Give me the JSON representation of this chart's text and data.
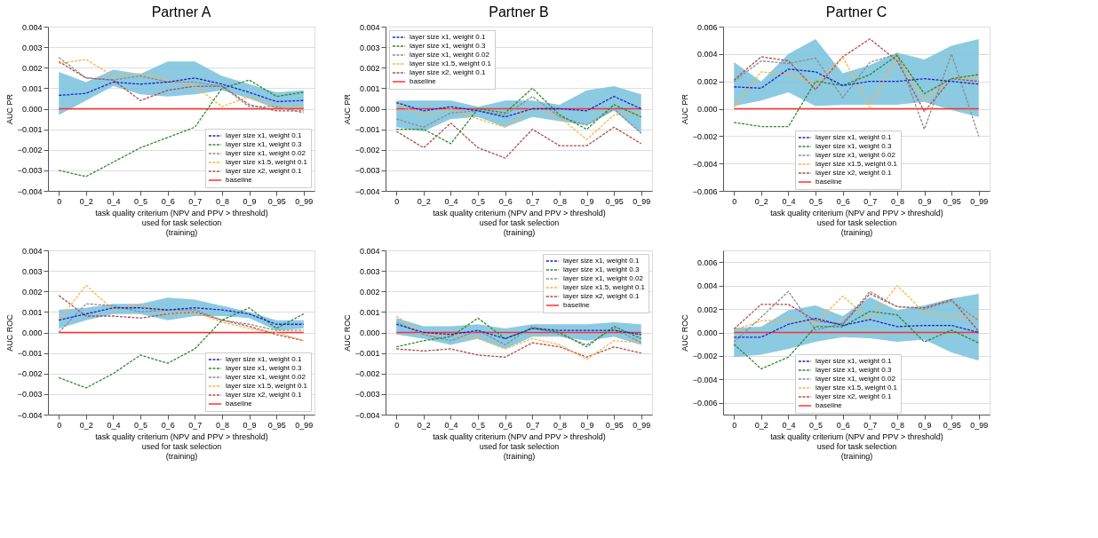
{
  "chart_data": [
    {
      "type": "line",
      "title": "Partner A",
      "xlabel": "task quality criterium (NPV and PPV > threshold)\nused for task selection\n(training)",
      "ylabel": "AUC PR",
      "categories": [
        "0",
        "0_2",
        "0_4",
        "0_5",
        "0_6",
        "0_7",
        "0_8",
        "0_9",
        "0_95",
        "0_99"
      ],
      "ylim": [
        -0.004,
        0.004
      ],
      "yticks": [
        {
          "value": -0.004,
          "label": "−0.004"
        },
        {
          "value": -0.003,
          "label": "−0.003"
        },
        {
          "value": -0.002,
          "label": "−0.002"
        },
        {
          "value": -0.001,
          "label": "−0.001"
        },
        {
          "value": 0,
          "label": "0.000"
        },
        {
          "value": 0.001,
          "label": "0.001"
        },
        {
          "value": 0.002,
          "label": "0.002"
        },
        {
          "value": 0.003,
          "label": "0.003"
        },
        {
          "value": 0.004,
          "label": "0.004"
        }
      ],
      "grid": "y",
      "legend": "bottom right",
      "line_style": "dashed",
      "series": [
        {
          "name": "layer size x1, weight 0.1",
          "color": "#1f1fd0",
          "values": [
            0.00065,
            0.00075,
            0.0013,
            0.0012,
            0.0013,
            0.0015,
            0.0012,
            0.0008,
            0.00035,
            0.0004
          ],
          "lower": [
            -0.0003,
            0.0004,
            0.0011,
            0.0007,
            0.0006,
            0.0007,
            0.0009,
            0.0005,
            0.0,
            0.0
          ],
          "upper": [
            0.0018,
            0.0013,
            0.0019,
            0.0017,
            0.0023,
            0.0023,
            0.0016,
            0.0012,
            0.0008,
            0.0009
          ]
        },
        {
          "name": "layer size x1, weight 0.3",
          "color": "#2a8a2a",
          "values": [
            -0.003,
            -0.0033,
            -0.0026,
            -0.0019,
            -0.0014,
            -0.0009,
            0.001,
            0.0014,
            0.0006,
            0.0008
          ]
        },
        {
          "name": "layer size x1, weight 0.02",
          "color": "#8c8c8c",
          "values": [
            0.0025,
            0.0015,
            0.0014,
            0.0016,
            0.0013,
            0.0013,
            0.0011,
            0.0001,
            0.0001,
            -0.0002
          ]
        },
        {
          "name": "layer size x1.5, weight 0.1",
          "color": "#ffb347",
          "values": [
            0.0022,
            0.0024,
            0.0016,
            0.0017,
            0.0014,
            0.0011,
            0.0001,
            0.0006,
            0.0001,
            0.0001
          ]
        },
        {
          "name": "layer size x2, weight 0.1",
          "color": "#b04a4a",
          "values": [
            0.0023,
            0.0015,
            0.0014,
            0.0004,
            0.0009,
            0.0011,
            0.0011,
            0.0002,
            -0.0001,
            -0.0001
          ]
        },
        {
          "name": "baseline",
          "color": "#ff3030",
          "line_style": "solid",
          "values": [
            0,
            0,
            0,
            0,
            0,
            0,
            0,
            0,
            0,
            0
          ]
        }
      ]
    },
    {
      "type": "line",
      "title": "Partner B",
      "xlabel": "task quality criterium (NPV and PPV > threshold)\nused for task selection\n(training)",
      "ylabel": "AUC PR",
      "categories": [
        "0",
        "0_2",
        "0_4",
        "0_5",
        "0_6",
        "0_7",
        "0_8",
        "0_9",
        "0_95",
        "0_99"
      ],
      "ylim": [
        -0.004,
        0.004
      ],
      "yticks": [
        {
          "value": -0.004,
          "label": "−0.004"
        },
        {
          "value": -0.003,
          "label": "−0.003"
        },
        {
          "value": -0.002,
          "label": "−0.002"
        },
        {
          "value": -0.001,
          "label": "−0.001"
        },
        {
          "value": 0,
          "label": "0.000"
        },
        {
          "value": 0.001,
          "label": "0.001"
        },
        {
          "value": 0.002,
          "label": "0.002"
        },
        {
          "value": 0.003,
          "label": "0.003"
        },
        {
          "value": 0.004,
          "label": "0.004"
        }
      ],
      "grid": "y",
      "legend": "top left",
      "line_style": "dashed",
      "series": [
        {
          "name": "layer size x1, weight 0.1",
          "color": "#1f1fd0",
          "values": [
            0.0003,
            -0.0001,
            0.0001,
            -0.0001,
            -0.0004,
            0.0,
            0.0,
            -0.0001,
            0.0006,
            0.0
          ],
          "lower": [
            -0.0009,
            -0.0011,
            -0.0005,
            -0.0004,
            -0.0009,
            -0.0004,
            -0.0006,
            -0.0008,
            -0.0001,
            -0.0012
          ],
          "upper": [
            0.0004,
            0.0004,
            0.0004,
            0.0001,
            0.0004,
            0.0004,
            0.0002,
            0.0009,
            0.0011,
            0.0007
          ]
        },
        {
          "name": "layer size x1, weight 0.3",
          "color": "#2a8a2a",
          "values": [
            -0.001,
            -0.001,
            -0.0017,
            0.0,
            -0.0002,
            0.001,
            -0.0003,
            -0.001,
            0.0002,
            -0.0004
          ]
        },
        {
          "name": "layer size x1, weight 0.02",
          "color": "#8c8c8c",
          "values": [
            -0.0005,
            -0.0009,
            -0.0002,
            -0.0001,
            -0.0003,
            0.0006,
            -0.0004,
            -0.0008,
            0.0,
            -0.0012
          ]
        },
        {
          "name": "layer size x1.5, weight 0.1",
          "color": "#ffb347",
          "values": [
            0.0002,
            -0.0003,
            0.0,
            -0.0005,
            -0.0009,
            0.0001,
            -0.0004,
            -0.0015,
            -0.0003,
            -0.0002
          ]
        },
        {
          "name": "layer size x2, weight 0.1",
          "color": "#b04a4a",
          "values": [
            -0.0011,
            -0.0019,
            -0.0007,
            -0.0019,
            -0.0024,
            -0.001,
            -0.0018,
            -0.0018,
            -0.0009,
            -0.0017
          ]
        },
        {
          "name": "baseline",
          "color": "#ff3030",
          "line_style": "solid",
          "values": [
            0,
            0,
            0,
            0,
            0,
            0,
            0,
            0,
            0,
            0
          ]
        }
      ]
    },
    {
      "type": "line",
      "title": "Partner C",
      "xlabel": "task quality criterium (NPV and PPV > threshold)\nused for task selection\n(training)",
      "ylabel": "AUC PR",
      "categories": [
        "0",
        "0_2",
        "0_4",
        "0_5",
        "0_6",
        "0_7",
        "0_8",
        "0_9",
        "0_95",
        "0_99"
      ],
      "ylim": [
        -0.006,
        0.006
      ],
      "yticks": [
        {
          "value": -0.006,
          "label": "−0.006"
        },
        {
          "value": -0.004,
          "label": "−0.004"
        },
        {
          "value": -0.002,
          "label": "−0.002"
        },
        {
          "value": 0,
          "label": "0.000"
        },
        {
          "value": 0.002,
          "label": "0.002"
        },
        {
          "value": 0.004,
          "label": "0.004"
        },
        {
          "value": 0.006,
          "label": "0.006"
        }
      ],
      "grid": "y",
      "legend": "bottom",
      "line_style": "dashed",
      "series": [
        {
          "name": "layer size x1, weight 0.1",
          "color": "#1f1fd0",
          "values": [
            0.0016,
            0.0015,
            0.0029,
            0.0027,
            0.0017,
            0.002,
            0.002,
            0.0022,
            0.002,
            0.0018
          ],
          "lower": [
            0.0002,
            0.0006,
            0.0012,
            0.0002,
            0.0003,
            0.0003,
            0.0003,
            0.0005,
            -0.0001,
            -0.0006
          ],
          "upper": [
            0.0034,
            0.002,
            0.004,
            0.0051,
            0.0026,
            0.0032,
            0.0041,
            0.0036,
            0.0046,
            0.0051
          ]
        },
        {
          "name": "layer size x1, weight 0.3",
          "color": "#2a8a2a",
          "values": [
            -0.001,
            -0.0013,
            -0.0013,
            0.002,
            0.0017,
            0.0025,
            0.0039,
            0.0011,
            0.0022,
            0.0025
          ]
        },
        {
          "name": "layer size x1, weight 0.02",
          "color": "#8c8c8c",
          "values": [
            0.002,
            0.0035,
            0.0033,
            0.0037,
            0.0008,
            0.0034,
            0.004,
            -0.0015,
            0.004,
            -0.002
          ]
        },
        {
          "name": "layer size x1.5, weight 0.1",
          "color": "#ffb347",
          "values": [
            0.0001,
            0.0027,
            0.0025,
            0.0018,
            0.0038,
            0.0001,
            0.0038,
            0.0007,
            0.0022,
            0.0023
          ]
        },
        {
          "name": "layer size x2, weight 0.1",
          "color": "#b04a4a",
          "values": [
            0.0021,
            0.0038,
            0.0035,
            0.0014,
            0.0038,
            0.0051,
            0.0035,
            -0.0002,
            0.0022,
            0.002
          ]
        },
        {
          "name": "baseline",
          "color": "#ff3030",
          "line_style": "solid",
          "values": [
            0,
            0,
            0,
            0,
            0,
            0,
            0,
            0,
            0,
            0
          ]
        }
      ]
    },
    {
      "type": "line",
      "xlabel": "task quality criterium (NPV and PPV > threshold)\nused for task selection\n(training)",
      "ylabel": "AUC ROC",
      "categories": [
        "0",
        "0_2",
        "0_4",
        "0_5",
        "0_6",
        "0_7",
        "0_8",
        "0_9",
        "0_95",
        "0_99"
      ],
      "ylim": [
        -0.004,
        0.004
      ],
      "yticks": [
        {
          "value": -0.004,
          "label": "−0.004"
        },
        {
          "value": -0.003,
          "label": "−0.003"
        },
        {
          "value": -0.002,
          "label": "−0.002"
        },
        {
          "value": -0.001,
          "label": "−0.001"
        },
        {
          "value": 0,
          "label": "0.000"
        },
        {
          "value": 0.001,
          "label": "0.001"
        },
        {
          "value": 0.002,
          "label": "0.002"
        },
        {
          "value": 0.003,
          "label": "0.003"
        },
        {
          "value": 0.004,
          "label": "0.004"
        }
      ],
      "grid": "y",
      "legend": "bottom right",
      "line_style": "dashed",
      "series": [
        {
          "name": "layer size x1, weight 0.1",
          "color": "#1f1fd0",
          "values": [
            0.0006,
            0.0009,
            0.0012,
            0.0012,
            0.0011,
            0.0012,
            0.0011,
            0.0009,
            0.0004,
            0.0004
          ],
          "lower": [
            0.0002,
            0.0006,
            0.0009,
            0.0009,
            0.0006,
            0.0008,
            0.0008,
            0.0007,
            0.0001,
            0.0002
          ],
          "upper": [
            0.0011,
            0.0012,
            0.0014,
            0.0014,
            0.0017,
            0.0016,
            0.0013,
            0.001,
            0.0006,
            0.0006
          ]
        },
        {
          "name": "layer size x1, weight 0.3",
          "color": "#2a8a2a",
          "values": [
            -0.0022,
            -0.0027,
            -0.002,
            -0.0011,
            -0.0015,
            -0.0008,
            0.0006,
            0.0012,
            0.0002,
            0.0009
          ]
        },
        {
          "name": "layer size x1, weight 0.02",
          "color": "#8c8c8c",
          "values": [
            0.0,
            0.0014,
            0.0013,
            0.001,
            0.0011,
            0.0011,
            0.0006,
            0.0004,
            0.0001,
            0.0001
          ]
        },
        {
          "name": "layer size x1.5, weight 0.1",
          "color": "#ffb347",
          "values": [
            0.0006,
            0.0023,
            0.0011,
            0.0014,
            0.0009,
            0.001,
            0.0005,
            0.0002,
            0.0,
            -0.0004
          ]
        },
        {
          "name": "layer size x2, weight 0.1",
          "color": "#b04a4a",
          "values": [
            0.0018,
            0.0008,
            0.0008,
            0.0007,
            0.0009,
            0.001,
            0.0006,
            0.0003,
            -0.0001,
            -0.0004
          ]
        },
        {
          "name": "baseline",
          "color": "#ff3030",
          "line_style": "solid",
          "values": [
            0,
            0,
            0,
            0,
            0,
            0,
            0,
            0,
            0,
            0
          ]
        }
      ]
    },
    {
      "type": "line",
      "xlabel": "task quality criterium (NPV and PPV > threshold)\nused for task selection\n(training)",
      "ylabel": "AUC ROC",
      "categories": [
        "0",
        "0_2",
        "0_4",
        "0_5",
        "0_6",
        "0_7",
        "0_8",
        "0_9",
        "0_95",
        "0_99"
      ],
      "ylim": [
        -0.004,
        0.004
      ],
      "yticks": [
        {
          "value": -0.004,
          "label": "−0.004"
        },
        {
          "value": -0.003,
          "label": "−0.003"
        },
        {
          "value": -0.002,
          "label": "−0.002"
        },
        {
          "value": -0.001,
          "label": "−0.001"
        },
        {
          "value": 0,
          "label": "0.000"
        },
        {
          "value": 0.001,
          "label": "0.001"
        },
        {
          "value": 0.002,
          "label": "0.002"
        },
        {
          "value": 0.003,
          "label": "0.003"
        },
        {
          "value": 0.004,
          "label": "0.004"
        }
      ],
      "grid": "y",
      "legend": "top right",
      "line_style": "dashed",
      "series": [
        {
          "name": "layer size x1, weight 0.1",
          "color": "#1f1fd0",
          "values": [
            0.0004,
            0.0,
            -0.0001,
            0.0001,
            -0.0003,
            0.0002,
            0.0001,
            0.0001,
            0.0001,
            -0.0001
          ],
          "lower": [
            -0.0001,
            -0.0003,
            -0.0006,
            -0.0003,
            -0.0008,
            -0.0002,
            -0.0002,
            -0.0004,
            -0.0002,
            -0.0006
          ],
          "upper": [
            0.0007,
            0.0003,
            0.0003,
            0.0004,
            0.0002,
            0.0004,
            0.0004,
            0.0004,
            0.0005,
            0.0004
          ]
        },
        {
          "name": "layer size x1, weight 0.3",
          "color": "#2a8a2a",
          "values": [
            -0.0007,
            -0.0004,
            -0.0002,
            0.0007,
            -0.0003,
            0.0002,
            0.0,
            -0.0007,
            0.0003,
            -0.0003
          ]
        },
        {
          "name": "layer size x1, weight 0.02",
          "color": "#8c8c8c",
          "values": [
            0.0005,
            -0.0001,
            -0.0004,
            0.0001,
            -0.0006,
            0.0003,
            -0.0001,
            -0.0006,
            0.0002,
            -0.0005
          ]
        },
        {
          "name": "layer size x1.5, weight 0.1",
          "color": "#ffb347",
          "values": [
            0.0008,
            -0.0001,
            -0.0001,
            -0.0003,
            -0.0008,
            -0.0003,
            -0.0006,
            -0.0013,
            -0.0004,
            -0.0005
          ]
        },
        {
          "name": "layer size x2, weight 0.1",
          "color": "#b04a4a",
          "values": [
            -0.0008,
            -0.0009,
            -0.0008,
            -0.0011,
            -0.0012,
            -0.0005,
            -0.0007,
            -0.0012,
            -0.0007,
            -0.001
          ]
        },
        {
          "name": "baseline",
          "color": "#ff3030",
          "line_style": "solid",
          "values": [
            0,
            0,
            0,
            0,
            0,
            0,
            0,
            0,
            0,
            0
          ]
        }
      ]
    },
    {
      "type": "line",
      "xlabel": "task quality criterium (NPV and PPV > threshold)\nused for task selection\n(training)",
      "ylabel": "AUC ROC",
      "categories": [
        "0",
        "0_2",
        "0_4",
        "0_5",
        "0_6",
        "0_7",
        "0_8",
        "0_9",
        "0_95",
        "0_99"
      ],
      "ylim": [
        -0.007,
        0.007
      ],
      "yticks": [
        {
          "value": -0.006,
          "label": "−0.006"
        },
        {
          "value": -0.004,
          "label": "−0.004"
        },
        {
          "value": -0.002,
          "label": "−0.002"
        },
        {
          "value": 0,
          "label": "0.000"
        },
        {
          "value": 0.002,
          "label": "0.002"
        },
        {
          "value": 0.004,
          "label": "0.004"
        },
        {
          "value": 0.006,
          "label": "0.006"
        }
      ],
      "grid": "y",
      "legend": "bottom",
      "line_style": "dashed",
      "series": [
        {
          "name": "layer size x1, weight 0.1",
          "color": "#1f1fd0",
          "values": [
            -0.0004,
            -0.0004,
            0.0007,
            0.0012,
            0.0006,
            0.0011,
            0.0005,
            0.0006,
            0.0006,
            0.0
          ],
          "lower": [
            -0.0021,
            -0.0019,
            -0.0014,
            -0.0008,
            -0.0004,
            -0.0005,
            -0.0008,
            -0.0006,
            -0.0017,
            -0.0024
          ],
          "upper": [
            0.0004,
            0.0005,
            0.0019,
            0.0023,
            0.0014,
            0.003,
            0.0019,
            0.0023,
            0.0029,
            0.0033
          ]
        },
        {
          "name": "layer size x1, weight 0.3",
          "color": "#2a8a2a",
          "values": [
            -0.001,
            -0.0031,
            -0.0021,
            0.0005,
            0.0005,
            0.0018,
            0.0015,
            -0.0008,
            0.0002,
            -0.0009
          ]
        },
        {
          "name": "layer size x1, weight 0.02",
          "color": "#8c8c8c",
          "values": [
            -0.0008,
            0.0013,
            0.0035,
            0.0002,
            0.0008,
            0.0035,
            0.0022,
            0.002,
            0.0027,
            0.001
          ]
        },
        {
          "name": "layer size x1.5, weight 0.1",
          "color": "#ffb347",
          "values": [
            0.0002,
            0.001,
            0.0011,
            0.0008,
            0.0031,
            0.0011,
            0.004,
            0.0017,
            0.0013,
            0.0014
          ]
        },
        {
          "name": "layer size x2, weight 0.1",
          "color": "#b04a4a",
          "values": [
            0.0003,
            0.0024,
            0.0024,
            0.001,
            0.0007,
            0.0033,
            0.0022,
            0.0021,
            0.0028,
            0.0001
          ]
        },
        {
          "name": "baseline",
          "color": "#ff3030",
          "line_style": "solid",
          "values": [
            0,
            0,
            0,
            0,
            0,
            0,
            0,
            0,
            0,
            0
          ]
        }
      ]
    }
  ]
}
